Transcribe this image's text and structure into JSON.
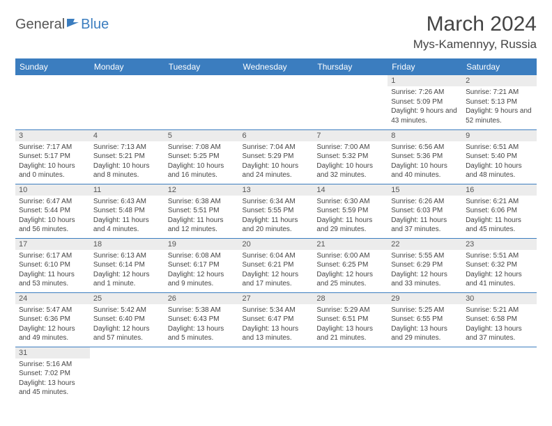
{
  "logo": {
    "text1": "General",
    "text2": "Blue"
  },
  "title": "March 2024",
  "location": "Mys-Kamennyy, Russia",
  "colors": {
    "header_bg": "#3b7dbf",
    "header_fg": "#ffffff",
    "daynum_bg": "#ececec",
    "border": "#3b7dbf",
    "text": "#444444"
  },
  "dayHeaders": [
    "Sunday",
    "Monday",
    "Tuesday",
    "Wednesday",
    "Thursday",
    "Friday",
    "Saturday"
  ],
  "weeks": [
    [
      {
        "n": "",
        "sr": "",
        "ss": "",
        "dl": ""
      },
      {
        "n": "",
        "sr": "",
        "ss": "",
        "dl": ""
      },
      {
        "n": "",
        "sr": "",
        "ss": "",
        "dl": ""
      },
      {
        "n": "",
        "sr": "",
        "ss": "",
        "dl": ""
      },
      {
        "n": "",
        "sr": "",
        "ss": "",
        "dl": ""
      },
      {
        "n": "1",
        "sr": "Sunrise: 7:26 AM",
        "ss": "Sunset: 5:09 PM",
        "dl": "Daylight: 9 hours and 43 minutes."
      },
      {
        "n": "2",
        "sr": "Sunrise: 7:21 AM",
        "ss": "Sunset: 5:13 PM",
        "dl": "Daylight: 9 hours and 52 minutes."
      }
    ],
    [
      {
        "n": "3",
        "sr": "Sunrise: 7:17 AM",
        "ss": "Sunset: 5:17 PM",
        "dl": "Daylight: 10 hours and 0 minutes."
      },
      {
        "n": "4",
        "sr": "Sunrise: 7:13 AM",
        "ss": "Sunset: 5:21 PM",
        "dl": "Daylight: 10 hours and 8 minutes."
      },
      {
        "n": "5",
        "sr": "Sunrise: 7:08 AM",
        "ss": "Sunset: 5:25 PM",
        "dl": "Daylight: 10 hours and 16 minutes."
      },
      {
        "n": "6",
        "sr": "Sunrise: 7:04 AM",
        "ss": "Sunset: 5:29 PM",
        "dl": "Daylight: 10 hours and 24 minutes."
      },
      {
        "n": "7",
        "sr": "Sunrise: 7:00 AM",
        "ss": "Sunset: 5:32 PM",
        "dl": "Daylight: 10 hours and 32 minutes."
      },
      {
        "n": "8",
        "sr": "Sunrise: 6:56 AM",
        "ss": "Sunset: 5:36 PM",
        "dl": "Daylight: 10 hours and 40 minutes."
      },
      {
        "n": "9",
        "sr": "Sunrise: 6:51 AM",
        "ss": "Sunset: 5:40 PM",
        "dl": "Daylight: 10 hours and 48 minutes."
      }
    ],
    [
      {
        "n": "10",
        "sr": "Sunrise: 6:47 AM",
        "ss": "Sunset: 5:44 PM",
        "dl": "Daylight: 10 hours and 56 minutes."
      },
      {
        "n": "11",
        "sr": "Sunrise: 6:43 AM",
        "ss": "Sunset: 5:48 PM",
        "dl": "Daylight: 11 hours and 4 minutes."
      },
      {
        "n": "12",
        "sr": "Sunrise: 6:38 AM",
        "ss": "Sunset: 5:51 PM",
        "dl": "Daylight: 11 hours and 12 minutes."
      },
      {
        "n": "13",
        "sr": "Sunrise: 6:34 AM",
        "ss": "Sunset: 5:55 PM",
        "dl": "Daylight: 11 hours and 20 minutes."
      },
      {
        "n": "14",
        "sr": "Sunrise: 6:30 AM",
        "ss": "Sunset: 5:59 PM",
        "dl": "Daylight: 11 hours and 29 minutes."
      },
      {
        "n": "15",
        "sr": "Sunrise: 6:26 AM",
        "ss": "Sunset: 6:03 PM",
        "dl": "Daylight: 11 hours and 37 minutes."
      },
      {
        "n": "16",
        "sr": "Sunrise: 6:21 AM",
        "ss": "Sunset: 6:06 PM",
        "dl": "Daylight: 11 hours and 45 minutes."
      }
    ],
    [
      {
        "n": "17",
        "sr": "Sunrise: 6:17 AM",
        "ss": "Sunset: 6:10 PM",
        "dl": "Daylight: 11 hours and 53 minutes."
      },
      {
        "n": "18",
        "sr": "Sunrise: 6:13 AM",
        "ss": "Sunset: 6:14 PM",
        "dl": "Daylight: 12 hours and 1 minute."
      },
      {
        "n": "19",
        "sr": "Sunrise: 6:08 AM",
        "ss": "Sunset: 6:17 PM",
        "dl": "Daylight: 12 hours and 9 minutes."
      },
      {
        "n": "20",
        "sr": "Sunrise: 6:04 AM",
        "ss": "Sunset: 6:21 PM",
        "dl": "Daylight: 12 hours and 17 minutes."
      },
      {
        "n": "21",
        "sr": "Sunrise: 6:00 AM",
        "ss": "Sunset: 6:25 PM",
        "dl": "Daylight: 12 hours and 25 minutes."
      },
      {
        "n": "22",
        "sr": "Sunrise: 5:55 AM",
        "ss": "Sunset: 6:29 PM",
        "dl": "Daylight: 12 hours and 33 minutes."
      },
      {
        "n": "23",
        "sr": "Sunrise: 5:51 AM",
        "ss": "Sunset: 6:32 PM",
        "dl": "Daylight: 12 hours and 41 minutes."
      }
    ],
    [
      {
        "n": "24",
        "sr": "Sunrise: 5:47 AM",
        "ss": "Sunset: 6:36 PM",
        "dl": "Daylight: 12 hours and 49 minutes."
      },
      {
        "n": "25",
        "sr": "Sunrise: 5:42 AM",
        "ss": "Sunset: 6:40 PM",
        "dl": "Daylight: 12 hours and 57 minutes."
      },
      {
        "n": "26",
        "sr": "Sunrise: 5:38 AM",
        "ss": "Sunset: 6:43 PM",
        "dl": "Daylight: 13 hours and 5 minutes."
      },
      {
        "n": "27",
        "sr": "Sunrise: 5:34 AM",
        "ss": "Sunset: 6:47 PM",
        "dl": "Daylight: 13 hours and 13 minutes."
      },
      {
        "n": "28",
        "sr": "Sunrise: 5:29 AM",
        "ss": "Sunset: 6:51 PM",
        "dl": "Daylight: 13 hours and 21 minutes."
      },
      {
        "n": "29",
        "sr": "Sunrise: 5:25 AM",
        "ss": "Sunset: 6:55 PM",
        "dl": "Daylight: 13 hours and 29 minutes."
      },
      {
        "n": "30",
        "sr": "Sunrise: 5:21 AM",
        "ss": "Sunset: 6:58 PM",
        "dl": "Daylight: 13 hours and 37 minutes."
      }
    ],
    [
      {
        "n": "31",
        "sr": "Sunrise: 5:16 AM",
        "ss": "Sunset: 7:02 PM",
        "dl": "Daylight: 13 hours and 45 minutes."
      },
      {
        "n": "",
        "sr": "",
        "ss": "",
        "dl": ""
      },
      {
        "n": "",
        "sr": "",
        "ss": "",
        "dl": ""
      },
      {
        "n": "",
        "sr": "",
        "ss": "",
        "dl": ""
      },
      {
        "n": "",
        "sr": "",
        "ss": "",
        "dl": ""
      },
      {
        "n": "",
        "sr": "",
        "ss": "",
        "dl": ""
      },
      {
        "n": "",
        "sr": "",
        "ss": "",
        "dl": ""
      }
    ]
  ]
}
